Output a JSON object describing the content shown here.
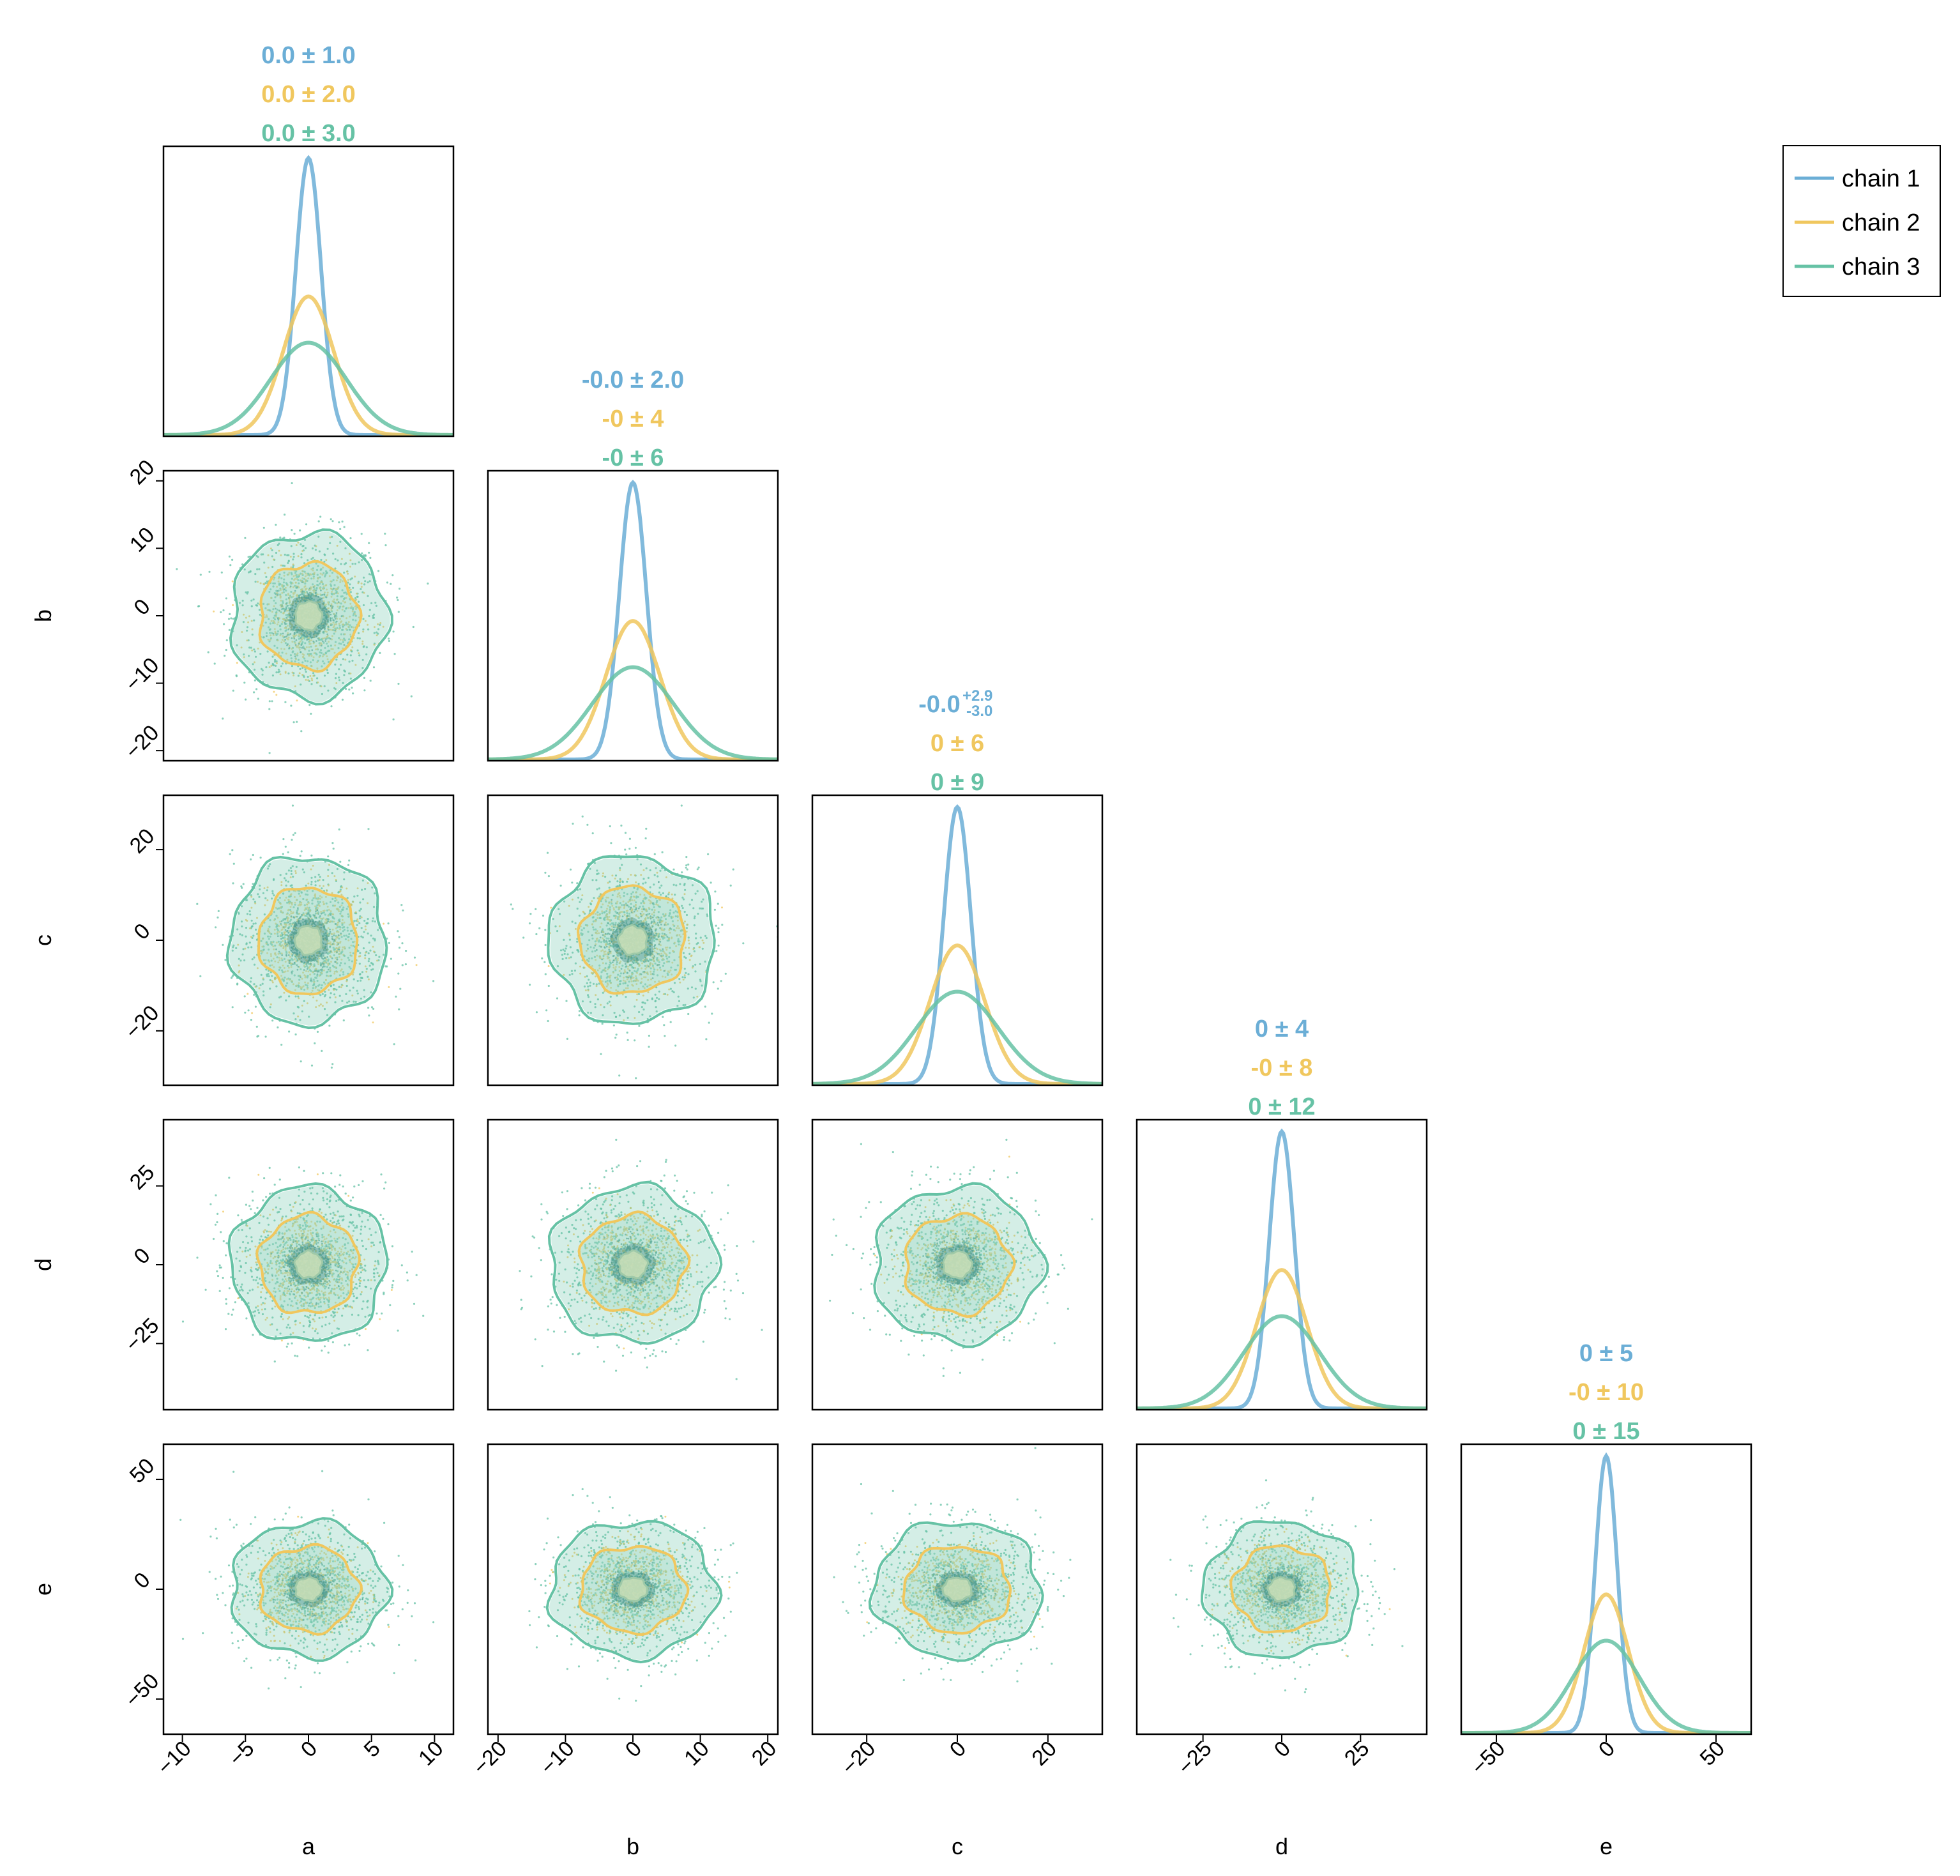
{
  "chart_data": {
    "type": "corner",
    "parameters": [
      "a",
      "b",
      "c",
      "d",
      "e"
    ],
    "series": [
      {
        "name": "chain 1",
        "color": "#6baed6",
        "sigma": [
          1,
          2,
          3,
          4,
          5
        ]
      },
      {
        "name": "chain 2",
        "color": "#f0c75e",
        "sigma": [
          2,
          4,
          6,
          8,
          10
        ]
      },
      {
        "name": "chain 3",
        "color": "#66c2a5",
        "sigma": [
          3,
          6,
          9,
          12,
          15
        ]
      }
    ],
    "ranges": [
      [
        -11.5,
        11.5
      ],
      [
        -21.5,
        21.5
      ],
      [
        -32,
        32
      ],
      [
        -46,
        46
      ],
      [
        -66,
        66
      ]
    ],
    "ticks": [
      [
        "−10",
        "−5",
        "0",
        "5",
        "10"
      ],
      [
        "−20",
        "−10",
        "0",
        "10",
        "20"
      ],
      [
        "−20",
        "0",
        "20"
      ],
      [
        "−25",
        "0",
        "25"
      ],
      [
        "−50",
        "0",
        "50"
      ]
    ],
    "tick_values": [
      [
        -10,
        -5,
        0,
        5,
        10
      ],
      [
        -20,
        -10,
        0,
        10,
        20
      ],
      [
        -20,
        0,
        20
      ],
      [
        -25,
        0,
        25
      ],
      [
        -50,
        0,
        50
      ]
    ],
    "summaries": [
      [
        "0.0 ± 1.0",
        "0.0 ± 2.0",
        "0.0 ± 3.0"
      ],
      [
        "-0.0 ± 2.0",
        "-0 ± 4",
        "-0 ± 6"
      ],
      [
        "-0.0",
        "0 ± 6",
        "0 ± 9"
      ],
      [
        "0 ± 4",
        "-0 ± 8",
        "0 ± 12"
      ],
      [
        "0 ± 5",
        "-0 ± 10",
        "0 ± 15"
      ]
    ],
    "asym_errors": {
      "upper": "+2.9",
      "lower": "-3.0"
    },
    "legend": {
      "entries": [
        "chain 1",
        "chain 2",
        "chain 3"
      ],
      "position": "top-right"
    }
  }
}
